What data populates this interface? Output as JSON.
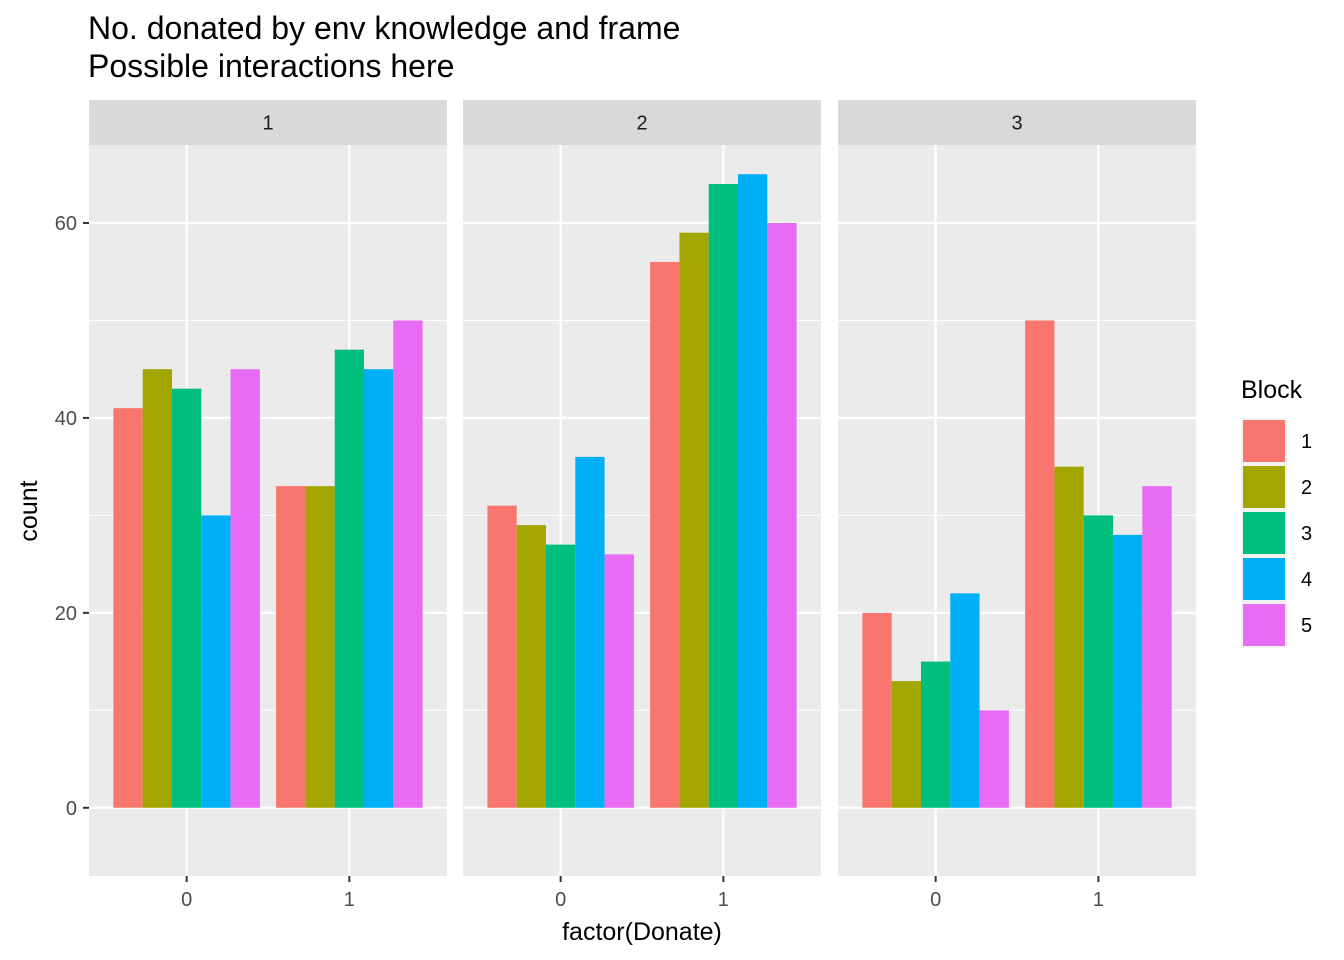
{
  "chart_data": {
    "type": "bar",
    "title": "No. donated by env knowledge and frame",
    "subtitle": "Possible interactions here",
    "xlabel": "factor(Donate)",
    "ylabel": "count",
    "ylim": [
      -7,
      68
    ],
    "y_ticks": [
      0,
      20,
      40,
      60
    ],
    "categories": [
      "0",
      "1"
    ],
    "grid": true,
    "legend": {
      "title": "Block",
      "position": "right"
    },
    "series": [
      {
        "name": "1",
        "color": "#F8766D"
      },
      {
        "name": "2",
        "color": "#A3A500"
      },
      {
        "name": "3",
        "color": "#00BF7D"
      },
      {
        "name": "4",
        "color": "#00B0F6"
      },
      {
        "name": "5",
        "color": "#E76BF3"
      }
    ],
    "facets": [
      {
        "label": "1",
        "values": {
          "0": [
            41,
            45,
            43,
            30,
            45
          ],
          "1": [
            33,
            33,
            47,
            45,
            50
          ]
        }
      },
      {
        "label": "2",
        "values": {
          "0": [
            31,
            29,
            27,
            36,
            26
          ],
          "1": [
            56,
            59,
            64,
            65,
            60
          ]
        }
      },
      {
        "label": "3",
        "values": {
          "0": [
            20,
            13,
            15,
            22,
            10
          ],
          "1": [
            50,
            35,
            30,
            28,
            33
          ]
        }
      }
    ]
  }
}
